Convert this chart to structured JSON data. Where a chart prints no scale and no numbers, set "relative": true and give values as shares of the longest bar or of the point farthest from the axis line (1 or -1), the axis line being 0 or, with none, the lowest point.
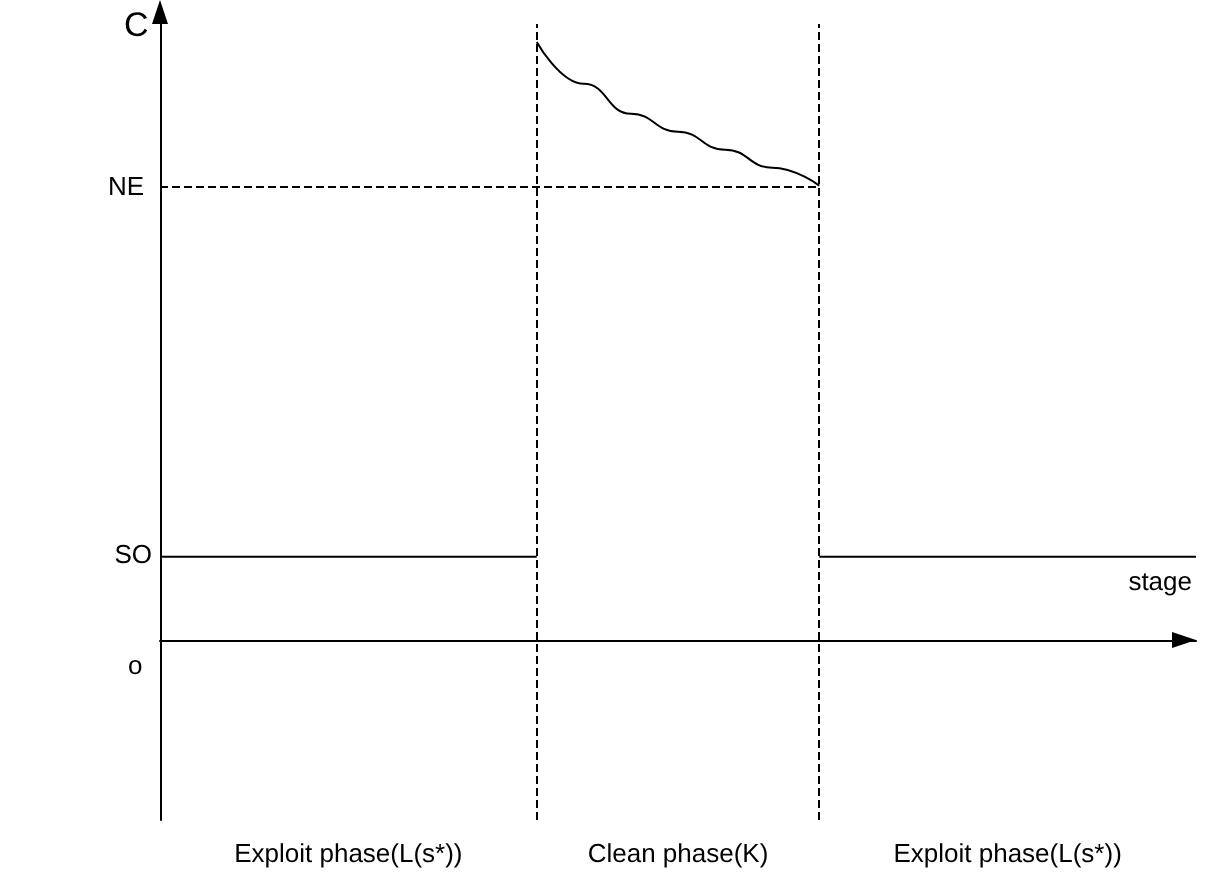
{
  "chart_data": {
    "type": "line",
    "relative": true,
    "xlabel": "stage",
    "ylabel": "C",
    "categories": [
      null,
      null,
      null,
      null,
      "Exploit phase(L(s*))",
      null,
      null,
      null,
      null,
      null,
      null,
      "Clean phase(K)",
      null,
      null,
      null,
      null,
      null,
      null,
      "Exploit phase(L(s*))",
      null,
      null,
      null,
      null
    ],
    "series": [
      {
        "color": "#000000",
        "values": [
          0.14,
          0.14,
          0.14,
          0.14,
          0.14,
          0.14,
          0.14,
          0.14,
          0.14,
          null,
          null,
          null,
          null,
          null,
          null,
          null,
          null,
          null,
          null,
          null,
          null,
          null,
          null
        ]
      },
      {
        "color": "#000000",
        "values": [
          null,
          null,
          null,
          null,
          null,
          null,
          null,
          null,
          1,
          0.93,
          0.88,
          0.85,
          0.82,
          0.79,
          0.76,
          null,
          null,
          null,
          null,
          null,
          null,
          null,
          null
        ]
      },
      {
        "color": "#000000",
        "values": [
          null,
          null,
          null,
          null,
          null,
          null,
          null,
          null,
          null,
          null,
          null,
          null,
          null,
          null,
          0.14,
          0.14,
          0.14,
          0.14,
          0.14,
          0.14,
          0.14,
          0.14,
          0.14
        ]
      }
    ],
    "ref_lines": [
      {
        "axis": "y",
        "value": 0.76,
        "label": "NE",
        "line_style": "dashed",
        "color": "#000000"
      }
    ],
    "annotations": [
      "SO",
      "o"
    ],
    "marker": "none",
    "grid": false
  }
}
